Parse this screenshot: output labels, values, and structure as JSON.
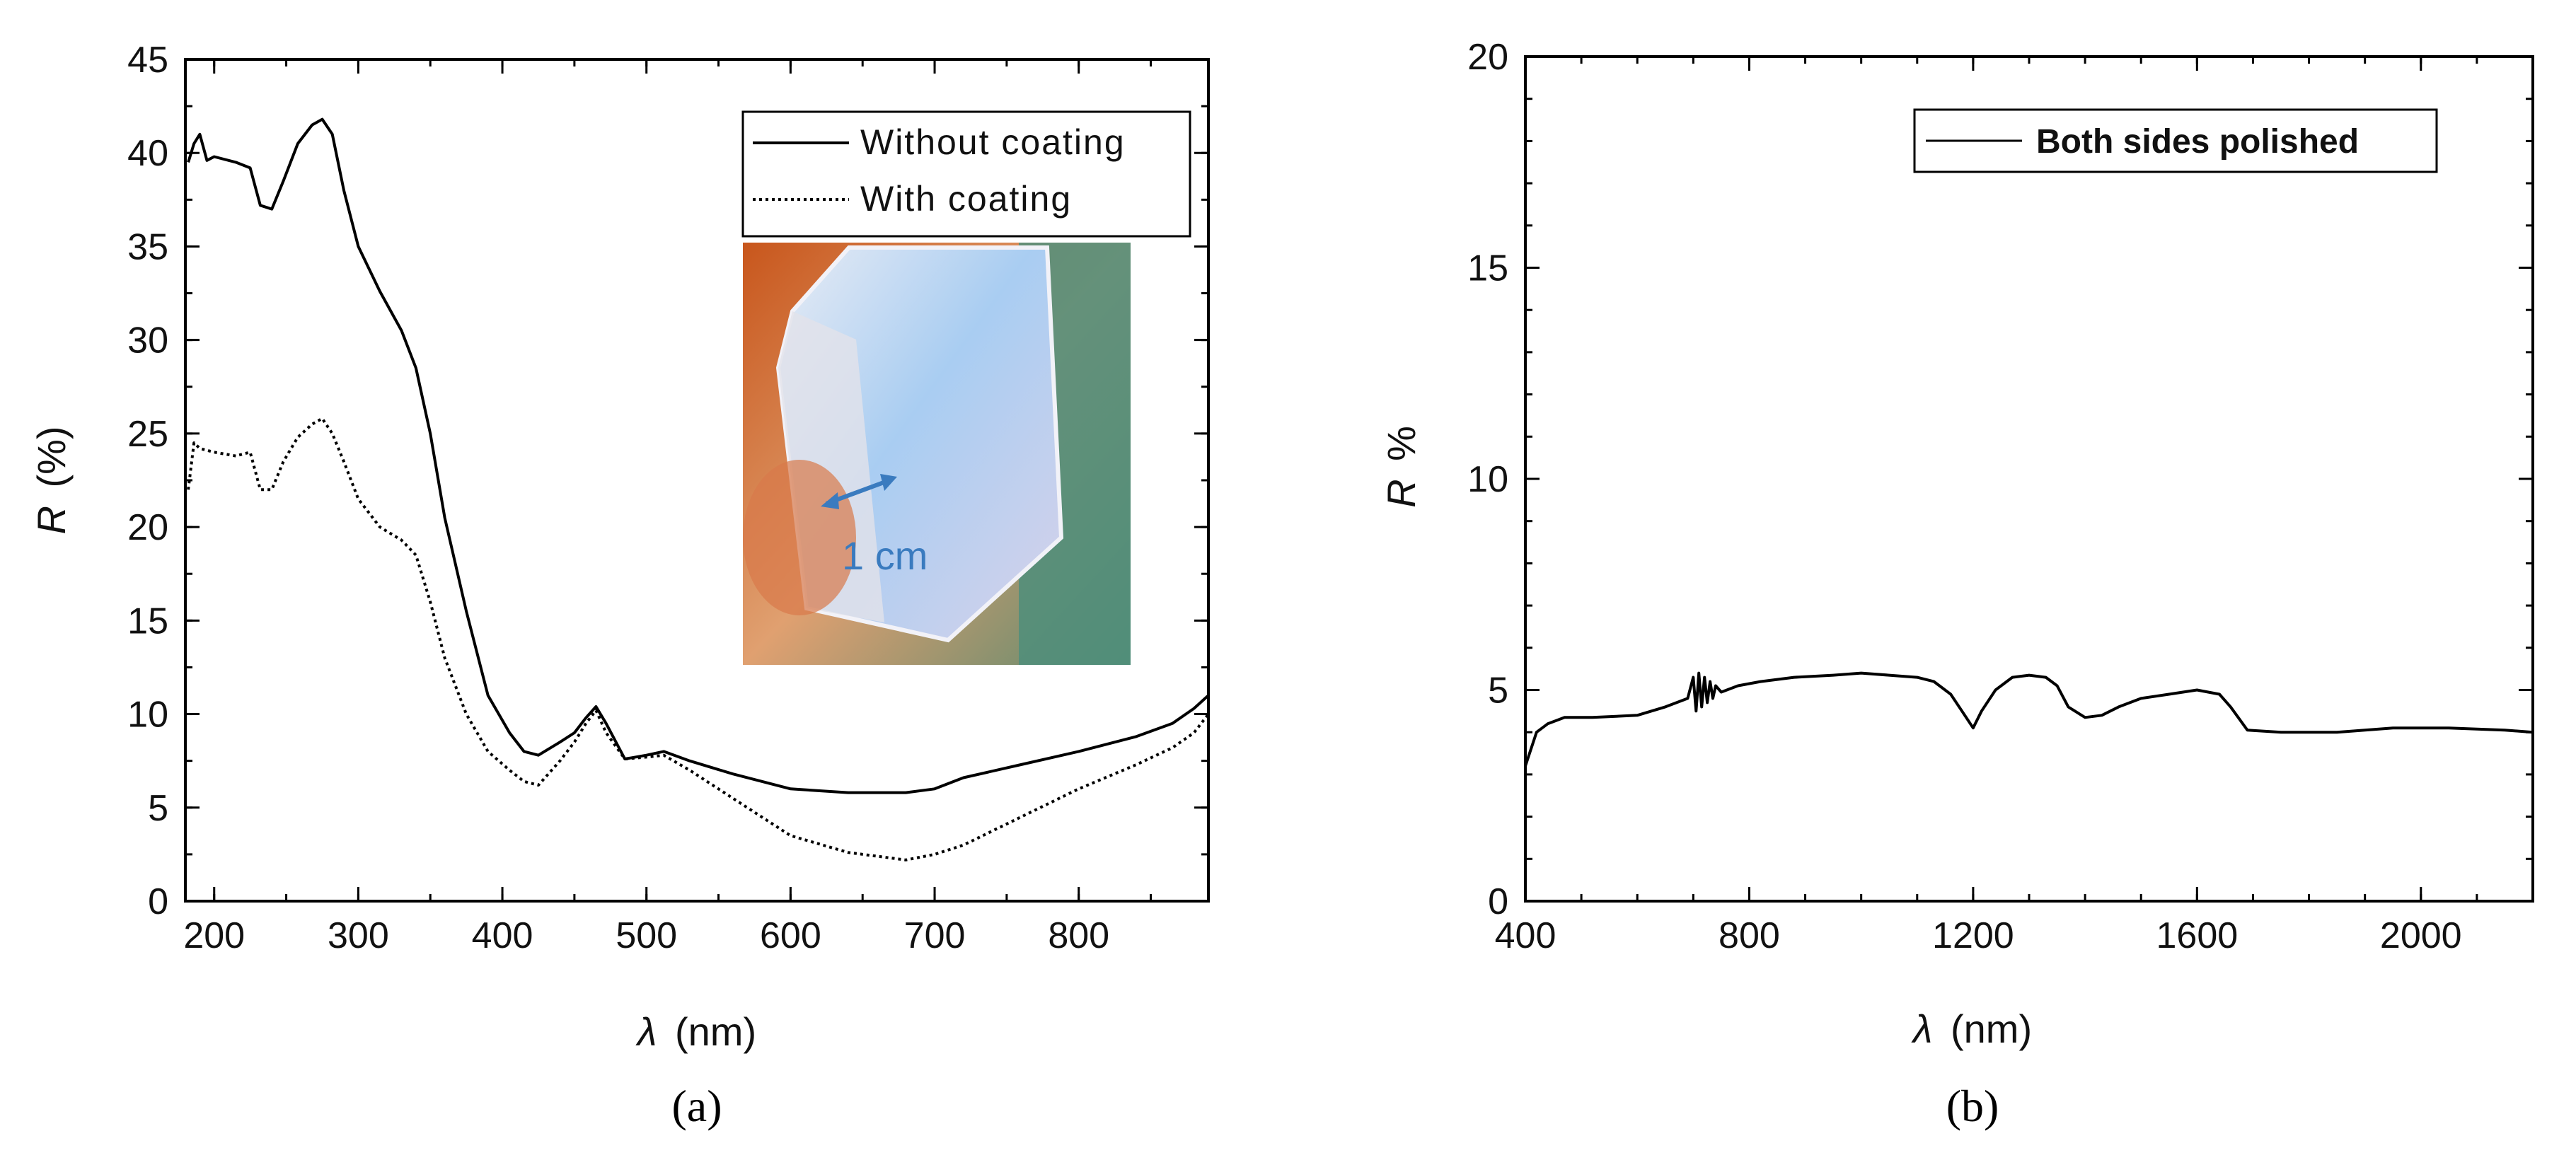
{
  "colors": {
    "axis": "#000000",
    "background": "#ffffff",
    "inset_label": "#3a7bbf"
  },
  "chart_data": [
    {
      "panel": "(a)",
      "type": "line",
      "xlabel": "λ (nm)",
      "xlabel_symbol": "λ",
      "xlabel_unit": "(nm)",
      "ylabel": "R (%)",
      "ylabel_symbol": "R",
      "ylabel_unit": "(%)",
      "xlim": [
        180,
        890
      ],
      "ylim": [
        0,
        45
      ],
      "xticks": [
        200,
        300,
        400,
        500,
        600,
        700,
        800
      ],
      "yticks": [
        0,
        5,
        10,
        15,
        20,
        25,
        30,
        35,
        40,
        45
      ],
      "legend_position": "top-right",
      "series": [
        {
          "name": "Without coating",
          "style": "solid",
          "x": [
            182,
            186,
            190,
            195,
            200,
            215,
            225,
            232,
            240,
            248,
            258,
            268,
            275,
            282,
            290,
            300,
            315,
            330,
            340,
            350,
            360,
            375,
            390,
            405,
            415,
            425,
            440,
            450,
            458,
            465,
            472,
            485,
            500,
            512,
            530,
            560,
            600,
            640,
            680,
            700,
            720,
            760,
            800,
            840,
            865,
            880,
            890
          ],
          "values": [
            39.5,
            40.5,
            41.0,
            39.6,
            39.8,
            39.5,
            39.2,
            37.2,
            37.0,
            38.5,
            40.5,
            41.5,
            41.8,
            41.0,
            38.0,
            35.0,
            32.6,
            30.5,
            28.5,
            25.0,
            20.5,
            15.5,
            11.0,
            9.0,
            8.0,
            7.8,
            8.5,
            9.0,
            9.8,
            10.4,
            9.5,
            7.6,
            7.8,
            8.0,
            7.5,
            6.8,
            6.0,
            5.8,
            5.8,
            6.0,
            6.6,
            7.3,
            8.0,
            8.8,
            9.5,
            10.3,
            11.0
          ]
        },
        {
          "name": "With coating",
          "style": "dotted",
          "x": [
            182,
            186,
            190,
            200,
            215,
            225,
            232,
            240,
            248,
            258,
            268,
            275,
            282,
            290,
            300,
            315,
            330,
            340,
            350,
            360,
            375,
            390,
            405,
            415,
            425,
            440,
            450,
            458,
            465,
            472,
            485,
            500,
            512,
            530,
            560,
            600,
            640,
            680,
            700,
            720,
            760,
            800,
            840,
            865,
            880,
            890
          ],
          "values": [
            22.0,
            24.5,
            24.2,
            24.0,
            23.8,
            24.0,
            22.0,
            22.0,
            23.5,
            24.8,
            25.5,
            25.8,
            25.0,
            23.5,
            21.5,
            20.0,
            19.3,
            18.5,
            16.0,
            13.0,
            10.0,
            8.0,
            7.0,
            6.4,
            6.2,
            7.5,
            8.5,
            9.5,
            10.2,
            9.0,
            7.6,
            7.7,
            7.8,
            7.0,
            5.5,
            3.5,
            2.6,
            2.2,
            2.5,
            3.0,
            4.5,
            6.0,
            7.3,
            8.2,
            9.0,
            10.0
          ]
        }
      ],
      "inset": {
        "label": "1 cm",
        "description_icon": "crystal-photo"
      }
    },
    {
      "panel": "(b)",
      "type": "line",
      "xlabel": "λ (nm)",
      "xlabel_symbol": "λ",
      "xlabel_unit": "(nm)",
      "ylabel": "R %",
      "ylabel_symbol": "R",
      "ylabel_unit": "%",
      "xlim": [
        400,
        2200
      ],
      "ylim": [
        0,
        20
      ],
      "xticks": [
        400,
        800,
        1200,
        1600,
        2000
      ],
      "yticks": [
        0,
        5,
        10,
        15,
        20
      ],
      "legend_position": "top-right",
      "series": [
        {
          "name": "Both sides polished",
          "style": "solid",
          "x": [
            400,
            410,
            420,
            440,
            470,
            520,
            600,
            650,
            690,
            700,
            705,
            710,
            715,
            720,
            725,
            730,
            735,
            740,
            750,
            780,
            820,
            880,
            950,
            1000,
            1050,
            1100,
            1130,
            1160,
            1180,
            1200,
            1215,
            1240,
            1270,
            1300,
            1330,
            1350,
            1370,
            1400,
            1430,
            1460,
            1500,
            1550,
            1600,
            1640,
            1660,
            1690,
            1750,
            1850,
            1950,
            2050,
            2150,
            2200
          ],
          "values": [
            3.2,
            3.6,
            4.0,
            4.2,
            4.35,
            4.35,
            4.4,
            4.6,
            4.8,
            5.3,
            4.5,
            5.4,
            4.6,
            5.3,
            4.7,
            5.2,
            4.8,
            5.1,
            4.95,
            5.1,
            5.2,
            5.3,
            5.35,
            5.4,
            5.35,
            5.3,
            5.2,
            4.9,
            4.5,
            4.1,
            4.5,
            5.0,
            5.3,
            5.35,
            5.3,
            5.1,
            4.6,
            4.35,
            4.4,
            4.6,
            4.8,
            4.9,
            5.0,
            4.9,
            4.6,
            4.05,
            4.0,
            4.0,
            4.1,
            4.1,
            4.05,
            4.0
          ]
        }
      ]
    }
  ]
}
